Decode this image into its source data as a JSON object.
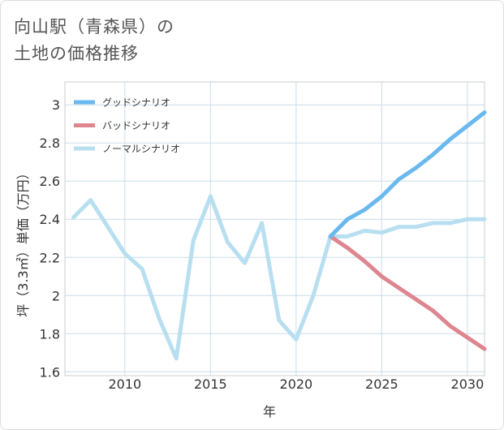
{
  "title": {
    "line1": "向山駅（青森県）の",
    "line2": "土地の価格推移"
  },
  "chart_data": {
    "type": "line",
    "xlabel": "年",
    "ylabel": "坪（3.3㎡）単価（万円）",
    "xlim": [
      2006.5,
      2031
    ],
    "ylim": [
      1.58,
      3.12
    ],
    "xticks": [
      2010,
      2015,
      2020,
      2025,
      2030
    ],
    "yticks": [
      1.6,
      1.8,
      2,
      2.2,
      2.4,
      2.6,
      2.8,
      3
    ],
    "xtick_labels": [
      "2010",
      "2015",
      "2020",
      "2025",
      "2030"
    ],
    "ytick_labels": [
      "1.6",
      "1.8",
      "2",
      "2.2",
      "2.4",
      "2.6",
      "2.8",
      "3"
    ],
    "legend_position": "top-left",
    "grid": true,
    "series": [
      {
        "name": "グッドシナリオ",
        "color": "#6ab9ee",
        "x": [
          2022,
          2023,
          2024,
          2025,
          2026,
          2027,
          2028,
          2029,
          2030,
          2031
        ],
        "y": [
          2.31,
          2.4,
          2.45,
          2.52,
          2.61,
          2.67,
          2.74,
          2.82,
          2.89,
          2.96
        ]
      },
      {
        "name": "バッドシナリオ",
        "color": "#de868f",
        "x": [
          2022,
          2023,
          2024,
          2025,
          2026,
          2027,
          2028,
          2029,
          2030,
          2031
        ],
        "y": [
          2.31,
          2.25,
          2.18,
          2.1,
          2.04,
          1.98,
          1.92,
          1.84,
          1.78,
          1.72
        ]
      },
      {
        "name": "ノーマルシナリオ",
        "color": "#b8dff0",
        "x": [
          2007,
          2008,
          2009,
          2010,
          2011,
          2012,
          2013,
          2014,
          2015,
          2016,
          2017,
          2018,
          2019,
          2020,
          2021,
          2022,
          2023,
          2024,
          2025,
          2026,
          2027,
          2028,
          2029,
          2030,
          2031
        ],
        "y": [
          2.41,
          2.5,
          2.36,
          2.22,
          2.14,
          1.88,
          1.67,
          2.29,
          2.52,
          2.28,
          2.17,
          2.38,
          1.87,
          1.77,
          2.0,
          2.31,
          2.31,
          2.34,
          2.33,
          2.36,
          2.36,
          2.38,
          2.38,
          2.4,
          2.4
        ]
      }
    ]
  }
}
